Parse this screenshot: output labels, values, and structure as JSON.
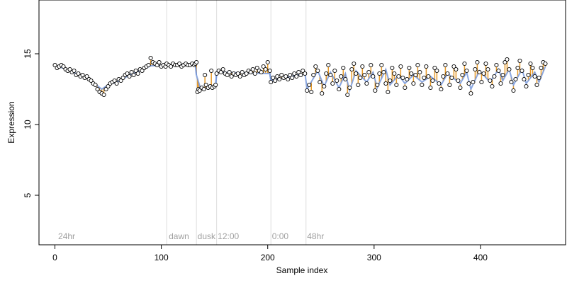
{
  "chart_data": {
    "type": "scatter",
    "xlabel": "Sample index",
    "ylabel": "Expression",
    "xlim": [
      -15,
      480
    ],
    "ylim": [
      1.5,
      18.8
    ],
    "x_ticks": [
      0,
      100,
      200,
      300,
      400
    ],
    "y_ticks": [
      5,
      10,
      15
    ],
    "colors": {
      "points_fill": "#ffffff",
      "points_stroke": "#000000",
      "fit_blue": "#7799dd",
      "fit_orange": "#e69a2a",
      "region_line": "#dddddd"
    },
    "region_boundaries": [
      0,
      105,
      133,
      152,
      203,
      236
    ],
    "region_labels": [
      {
        "x": 3,
        "label": "24hr"
      },
      {
        "x": 107,
        "label": "dawn"
      },
      {
        "x": 134,
        "label": "dusk"
      },
      {
        "x": 153,
        "label": "12:00"
      },
      {
        "x": 204,
        "label": "0:00"
      },
      {
        "x": 237,
        "label": "48hr"
      }
    ],
    "segments": [
      {
        "x_start": 0,
        "x_end": 104,
        "points": [
          [
            0,
            14.2
          ],
          [
            2,
            14.0
          ],
          [
            4,
            14.1
          ],
          [
            6,
            14.2
          ],
          [
            8,
            14.1
          ],
          [
            10,
            13.9
          ],
          [
            12,
            13.8
          ],
          [
            14,
            13.9
          ],
          [
            16,
            13.7
          ],
          [
            18,
            13.8
          ],
          [
            20,
            13.5
          ],
          [
            22,
            13.6
          ],
          [
            24,
            13.4
          ],
          [
            26,
            13.5
          ],
          [
            28,
            13.3
          ],
          [
            30,
            13.4
          ],
          [
            32,
            13.2
          ],
          [
            34,
            13.1
          ],
          [
            36,
            12.9
          ],
          [
            38,
            12.8
          ],
          [
            40,
            12.5
          ],
          [
            42,
            12.3
          ],
          [
            44,
            12.2
          ],
          [
            46,
            12.1
          ],
          [
            48,
            12.5
          ],
          [
            50,
            12.7
          ],
          [
            52,
            12.9
          ],
          [
            54,
            13.0
          ],
          [
            56,
            13.1
          ],
          [
            58,
            12.9
          ],
          [
            60,
            13.2
          ],
          [
            62,
            13.1
          ],
          [
            64,
            13.3
          ],
          [
            66,
            13.5
          ],
          [
            68,
            13.6
          ],
          [
            70,
            13.4
          ],
          [
            72,
            13.7
          ],
          [
            74,
            13.5
          ],
          [
            76,
            13.8
          ],
          [
            78,
            13.6
          ],
          [
            80,
            13.9
          ],
          [
            82,
            13.8
          ],
          [
            84,
            14.0
          ],
          [
            86,
            14.1
          ],
          [
            88,
            14.2
          ],
          [
            90,
            14.7
          ],
          [
            92,
            14.4
          ],
          [
            94,
            14.3
          ],
          [
            96,
            14.2
          ],
          [
            98,
            14.4
          ],
          [
            100,
            14.1
          ],
          [
            102,
            14.2
          ],
          [
            104,
            14.1
          ]
        ]
      },
      {
        "x_start": 105,
        "x_end": 132,
        "points": [
          [
            105,
            14.3
          ],
          [
            107,
            14.2
          ],
          [
            109,
            14.1
          ],
          [
            111,
            14.3
          ],
          [
            113,
            14.2
          ],
          [
            115,
            14.2
          ],
          [
            117,
            14.3
          ],
          [
            119,
            14.1
          ],
          [
            121,
            14.2
          ],
          [
            123,
            14.3
          ],
          [
            125,
            14.2
          ],
          [
            127,
            14.2
          ],
          [
            129,
            14.3
          ],
          [
            131,
            14.2
          ],
          [
            132,
            14.3
          ]
        ]
      },
      {
        "x_start": 133,
        "x_end": 151,
        "points": [
          [
            133,
            14.4
          ],
          [
            134,
            12.3
          ],
          [
            135,
            12.5
          ],
          [
            136,
            12.4
          ],
          [
            138,
            12.6
          ],
          [
            140,
            12.5
          ],
          [
            141,
            13.5
          ],
          [
            142,
            12.8
          ],
          [
            144,
            12.6
          ],
          [
            146,
            12.7
          ],
          [
            147,
            13.8
          ],
          [
            148,
            12.6
          ],
          [
            150,
            12.7
          ],
          [
            151,
            12.8
          ]
        ]
      },
      {
        "x_start": 152,
        "x_end": 202,
        "points": [
          [
            152,
            13.6
          ],
          [
            154,
            13.8
          ],
          [
            156,
            13.7
          ],
          [
            158,
            13.9
          ],
          [
            160,
            13.6
          ],
          [
            162,
            13.5
          ],
          [
            164,
            13.7
          ],
          [
            166,
            13.4
          ],
          [
            168,
            13.6
          ],
          [
            170,
            13.5
          ],
          [
            172,
            13.6
          ],
          [
            174,
            13.4
          ],
          [
            176,
            13.7
          ],
          [
            178,
            13.5
          ],
          [
            180,
            13.6
          ],
          [
            182,
            13.8
          ],
          [
            184,
            13.7
          ],
          [
            186,
            13.9
          ],
          [
            188,
            13.6
          ],
          [
            190,
            14.0
          ],
          [
            192,
            13.8
          ],
          [
            194,
            13.7
          ],
          [
            196,
            14.1
          ],
          [
            198,
            13.9
          ],
          [
            200,
            14.4
          ],
          [
            202,
            13.8
          ]
        ]
      },
      {
        "x_start": 203,
        "x_end": 235,
        "points": [
          [
            203,
            13.0
          ],
          [
            205,
            13.3
          ],
          [
            207,
            13.1
          ],
          [
            209,
            13.4
          ],
          [
            211,
            13.2
          ],
          [
            213,
            13.5
          ],
          [
            215,
            13.3
          ],
          [
            217,
            13.4
          ],
          [
            219,
            13.2
          ],
          [
            221,
            13.5
          ],
          [
            223,
            13.3
          ],
          [
            225,
            13.6
          ],
          [
            227,
            13.4
          ],
          [
            229,
            13.7
          ],
          [
            231,
            13.5
          ],
          [
            233,
            13.8
          ],
          [
            235,
            13.6
          ]
        ]
      },
      {
        "x_start": 236,
        "x_end": 462,
        "points": [
          [
            237,
            12.4
          ],
          [
            239,
            12.8
          ],
          [
            241,
            12.3
          ],
          [
            243,
            13.5
          ],
          [
            245,
            14.1
          ],
          [
            247,
            13.8
          ],
          [
            249,
            13.0
          ],
          [
            251,
            12.2
          ],
          [
            253,
            12.7
          ],
          [
            255,
            13.6
          ],
          [
            257,
            14.2
          ],
          [
            259,
            13.5
          ],
          [
            261,
            12.9
          ],
          [
            263,
            13.8
          ],
          [
            265,
            13.1
          ],
          [
            267,
            12.5
          ],
          [
            269,
            13.4
          ],
          [
            271,
            14.0
          ],
          [
            273,
            13.2
          ],
          [
            275,
            12.1
          ],
          [
            277,
            12.6
          ],
          [
            279,
            13.9
          ],
          [
            281,
            14.3
          ],
          [
            283,
            13.6
          ],
          [
            285,
            12.8
          ],
          [
            287,
            13.3
          ],
          [
            289,
            14.1
          ],
          [
            291,
            13.5
          ],
          [
            293,
            12.9
          ],
          [
            295,
            13.7
          ],
          [
            297,
            14.2
          ],
          [
            299,
            13.4
          ],
          [
            301,
            12.4
          ],
          [
            303,
            12.8
          ],
          [
            305,
            13.6
          ],
          [
            307,
            14.2
          ],
          [
            309,
            13.7
          ],
          [
            311,
            12.9
          ],
          [
            313,
            12.3
          ],
          [
            315,
            13.1
          ],
          [
            317,
            14.0
          ],
          [
            319,
            13.6
          ],
          [
            321,
            12.8
          ],
          [
            323,
            13.4
          ],
          [
            325,
            14.1
          ],
          [
            327,
            13.3
          ],
          [
            329,
            12.6
          ],
          [
            331,
            13.2
          ],
          [
            333,
            14.0
          ],
          [
            335,
            13.6
          ],
          [
            337,
            12.9
          ],
          [
            339,
            13.5
          ],
          [
            341,
            14.2
          ],
          [
            343,
            13.7
          ],
          [
            345,
            12.8
          ],
          [
            347,
            13.3
          ],
          [
            349,
            14.1
          ],
          [
            351,
            13.4
          ],
          [
            353,
            12.6
          ],
          [
            355,
            13.1
          ],
          [
            357,
            14.0
          ],
          [
            359,
            13.8
          ],
          [
            361,
            12.9
          ],
          [
            363,
            12.5
          ],
          [
            365,
            13.4
          ],
          [
            367,
            14.2
          ],
          [
            369,
            13.6
          ],
          [
            371,
            12.8
          ],
          [
            373,
            13.3
          ],
          [
            375,
            14.1
          ],
          [
            377,
            13.9
          ],
          [
            379,
            13.1
          ],
          [
            381,
            12.6
          ],
          [
            383,
            13.5
          ],
          [
            385,
            14.3
          ],
          [
            387,
            13.8
          ],
          [
            389,
            12.9
          ],
          [
            391,
            12.2
          ],
          [
            393,
            13.0
          ],
          [
            395,
            13.9
          ],
          [
            397,
            14.4
          ],
          [
            399,
            13.7
          ],
          [
            401,
            13.0
          ],
          [
            403,
            13.6
          ],
          [
            405,
            14.3
          ],
          [
            407,
            13.9
          ],
          [
            409,
            13.1
          ],
          [
            411,
            12.7
          ],
          [
            413,
            13.4
          ],
          [
            415,
            14.2
          ],
          [
            417,
            13.8
          ],
          [
            419,
            12.9
          ],
          [
            421,
            13.5
          ],
          [
            423,
            14.4
          ],
          [
            425,
            14.6
          ],
          [
            427,
            13.9
          ],
          [
            429,
            13.0
          ],
          [
            431,
            12.4
          ],
          [
            433,
            13.2
          ],
          [
            435,
            14.0
          ],
          [
            437,
            14.5
          ],
          [
            439,
            13.8
          ],
          [
            441,
            13.2
          ],
          [
            443,
            12.7
          ],
          [
            445,
            13.5
          ],
          [
            447,
            14.3
          ],
          [
            449,
            14.0
          ],
          [
            451,
            13.4
          ],
          [
            453,
            12.8
          ],
          [
            455,
            13.3
          ],
          [
            457,
            14.0
          ],
          [
            459,
            14.4
          ],
          [
            461,
            14.3
          ]
        ]
      }
    ],
    "smooth": [
      [
        0,
        14.15
      ],
      [
        10,
        13.95
      ],
      [
        20,
        13.6
      ],
      [
        30,
        13.3
      ],
      [
        38,
        12.85
      ],
      [
        44,
        12.5
      ],
      [
        50,
        12.8
      ],
      [
        60,
        13.05
      ],
      [
        70,
        13.5
      ],
      [
        80,
        13.8
      ],
      [
        90,
        14.15
      ],
      [
        104,
        14.2
      ],
      [
        105,
        14.2
      ],
      [
        132,
        14.25
      ],
      [
        133,
        13.5
      ],
      [
        137,
        12.5
      ],
      [
        151,
        12.7
      ],
      [
        152,
        13.7
      ],
      [
        202,
        13.6
      ],
      [
        203,
        13.1
      ],
      [
        235,
        13.6
      ],
      [
        237,
        12.5
      ],
      [
        247,
        13.8
      ],
      [
        253,
        12.7
      ],
      [
        259,
        13.7
      ],
      [
        267,
        12.6
      ],
      [
        273,
        13.6
      ],
      [
        277,
        12.4
      ],
      [
        283,
        13.8
      ],
      [
        293,
        13.0
      ],
      [
        299,
        13.7
      ],
      [
        303,
        12.6
      ],
      [
        311,
        13.9
      ],
      [
        315,
        12.8
      ],
      [
        323,
        13.5
      ],
      [
        329,
        12.9
      ],
      [
        337,
        13.5
      ],
      [
        345,
        13.0
      ],
      [
        353,
        13.4
      ],
      [
        363,
        12.8
      ],
      [
        369,
        13.6
      ],
      [
        381,
        12.9
      ],
      [
        387,
        13.7
      ],
      [
        391,
        12.5
      ],
      [
        399,
        13.8
      ],
      [
        409,
        13.0
      ],
      [
        417,
        13.9
      ],
      [
        421,
        13.1
      ],
      [
        427,
        13.9
      ],
      [
        431,
        12.8
      ],
      [
        439,
        13.9
      ],
      [
        443,
        12.9
      ],
      [
        451,
        13.7
      ],
      [
        455,
        13.0
      ],
      [
        461,
        14.1
      ]
    ]
  }
}
